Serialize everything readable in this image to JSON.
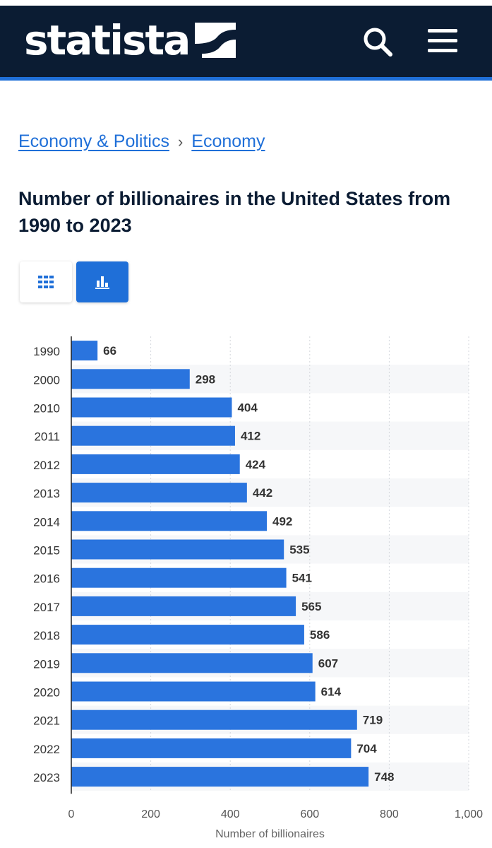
{
  "header": {
    "logo_text": "statista",
    "logo_icon": "statista-mark-icon",
    "search_icon": "search-icon",
    "menu_icon": "hamburger-menu-icon",
    "background_color": "#0b1c33",
    "accent_color": "#1f6fd8"
  },
  "breadcrumb": {
    "items": [
      {
        "label": "Economy & Politics"
      },
      {
        "label": "Economy"
      }
    ],
    "separator": "›"
  },
  "page": {
    "title": "Number of billionaires in the United States from 1990 to 2023"
  },
  "view_toggle": {
    "table_icon": "table-grid-icon",
    "chart_icon": "bar-chart-icon",
    "active": "chart"
  },
  "chart_data": {
    "type": "bar",
    "orientation": "horizontal",
    "categories": [
      "1990",
      "2000",
      "2010",
      "2011",
      "2012",
      "2013",
      "2014",
      "2015",
      "2016",
      "2017",
      "2018",
      "2019",
      "2020",
      "2021",
      "2022",
      "2023"
    ],
    "values": [
      66,
      298,
      404,
      412,
      424,
      442,
      492,
      535,
      541,
      565,
      586,
      607,
      614,
      719,
      704,
      748
    ],
    "xlabel": "Number of billionaires",
    "ylabel": "",
    "xlim": [
      0,
      1000
    ],
    "x_ticks": [
      0,
      200,
      400,
      600,
      800,
      1000
    ],
    "x_tick_labels": [
      "0",
      "200",
      "400",
      "600",
      "800",
      "1,000"
    ],
    "grid": "vertical dashed",
    "data_labels": true,
    "bar_color": "#2a74de"
  }
}
